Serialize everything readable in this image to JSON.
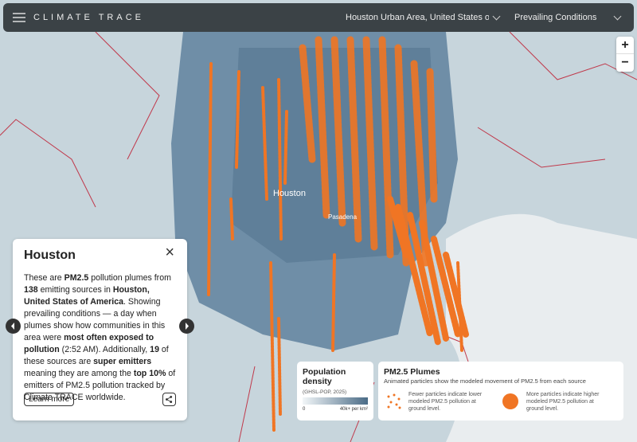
{
  "header": {
    "logo": "CLIMATE TRACE",
    "location": "Houston Urban Area, United States of Ame...",
    "mode": "Prevailing Conditions"
  },
  "zoom": {
    "in": "+",
    "out": "−"
  },
  "map_labels": {
    "city": "Houston",
    "suburb": "Pasadena"
  },
  "info_panel": {
    "title": "Houston",
    "close": "×",
    "body": [
      {
        "text": "These are "
      },
      {
        "text": "PM2.5",
        "bold": true
      },
      {
        "text": " pollution plumes from "
      },
      {
        "text": "138",
        "bold": true
      },
      {
        "text": " emitting sources in "
      },
      {
        "text": "Houston, United States of America",
        "bold": true
      },
      {
        "text": ". Showing prevailing conditions — a day when plumes show how communities in this area were "
      },
      {
        "text": "most often exposed to pollution",
        "bold": true
      },
      {
        "text": " (2:52 AM). Additionally, "
      },
      {
        "text": "19",
        "bold": true
      },
      {
        "text": " of these sources are "
      },
      {
        "text": "super emitters",
        "bold": true
      },
      {
        "text": " meaning they are among the "
      },
      {
        "text": "top 10%",
        "bold": true
      },
      {
        "text": " of emitters of PM2.5 pollution tracked by Climate TRACE worldwide."
      }
    ],
    "button": "Learn more"
  },
  "population_legend": {
    "title": "Population density",
    "source": "(GHSL-POP, 2025)",
    "min": "0",
    "max": "40k+ per km²"
  },
  "plume_legend": {
    "title": "PM2.5 Plumes",
    "subtitle": "Animated particles show the modeled movement of PM2.5 from each source",
    "low": "Fewer particles indicate lower modeled PM2.5 pollution at ground level.",
    "high": "More particles indicate higher modeled PM2.5 pollution at ground level."
  }
}
